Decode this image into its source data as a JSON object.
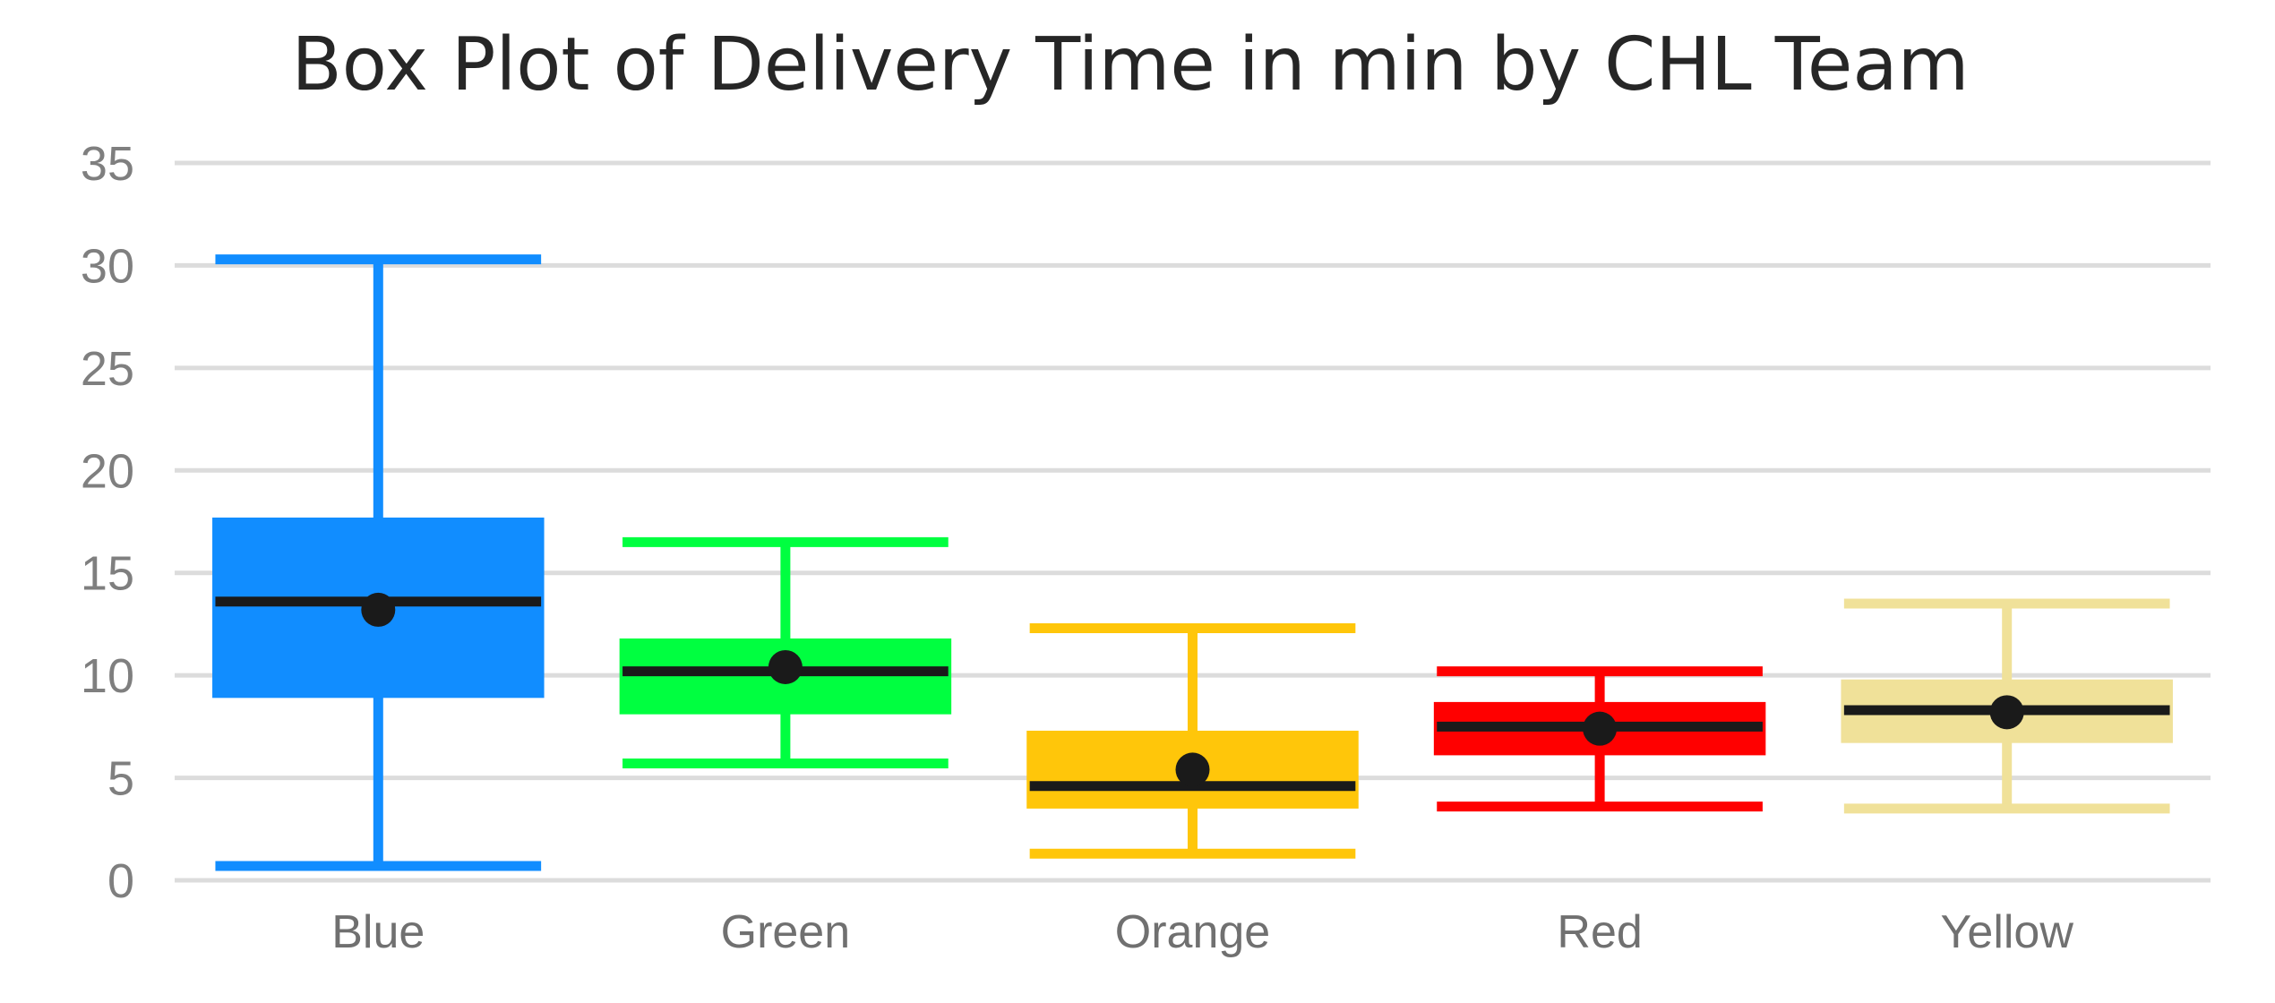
{
  "chart_data": {
    "type": "box",
    "title": "Box Plot of Delivery Time in min by CHL Team",
    "xlabel": "",
    "ylabel": "",
    "ylim": [
      0,
      35
    ],
    "yticks": [
      0,
      5,
      10,
      15,
      20,
      25,
      30,
      35
    ],
    "ytick_labels": [
      "0",
      "5",
      "10",
      "15",
      "20",
      "25",
      "30",
      "35"
    ],
    "grid": true,
    "legend": "none",
    "categories": [
      "Blue",
      "Green",
      "Orange",
      "Red",
      "Yellow"
    ],
    "series": [
      {
        "category": "Blue",
        "color": "#118DFF",
        "min": 0.7,
        "q1": 8.9,
        "median": 13.6,
        "mean": 13.2,
        "q3": 17.7,
        "max": 30.3
      },
      {
        "category": "Green",
        "color": "#00FF40",
        "min": 5.7,
        "q1": 8.1,
        "median": 10.2,
        "mean": 10.4,
        "q3": 11.8,
        "max": 16.5
      },
      {
        "category": "Orange",
        "color": "#FFC60A",
        "min": 1.3,
        "q1": 3.5,
        "median": 4.6,
        "mean": 5.4,
        "q3": 7.3,
        "max": 12.3
      },
      {
        "category": "Red",
        "color": "#FF0000",
        "min": 3.6,
        "q1": 6.1,
        "median": 7.5,
        "mean": 7.4,
        "q3": 8.7,
        "max": 10.2
      },
      {
        "category": "Yellow",
        "color": "#F0E199",
        "min": 3.5,
        "q1": 6.7,
        "median": 8.3,
        "mean": 8.2,
        "q3": 9.8,
        "max": 13.5
      }
    ],
    "median_color": "#1a1a1a",
    "mean_color": "#1a1a1a",
    "gridline_color": "#dcdcdc"
  }
}
